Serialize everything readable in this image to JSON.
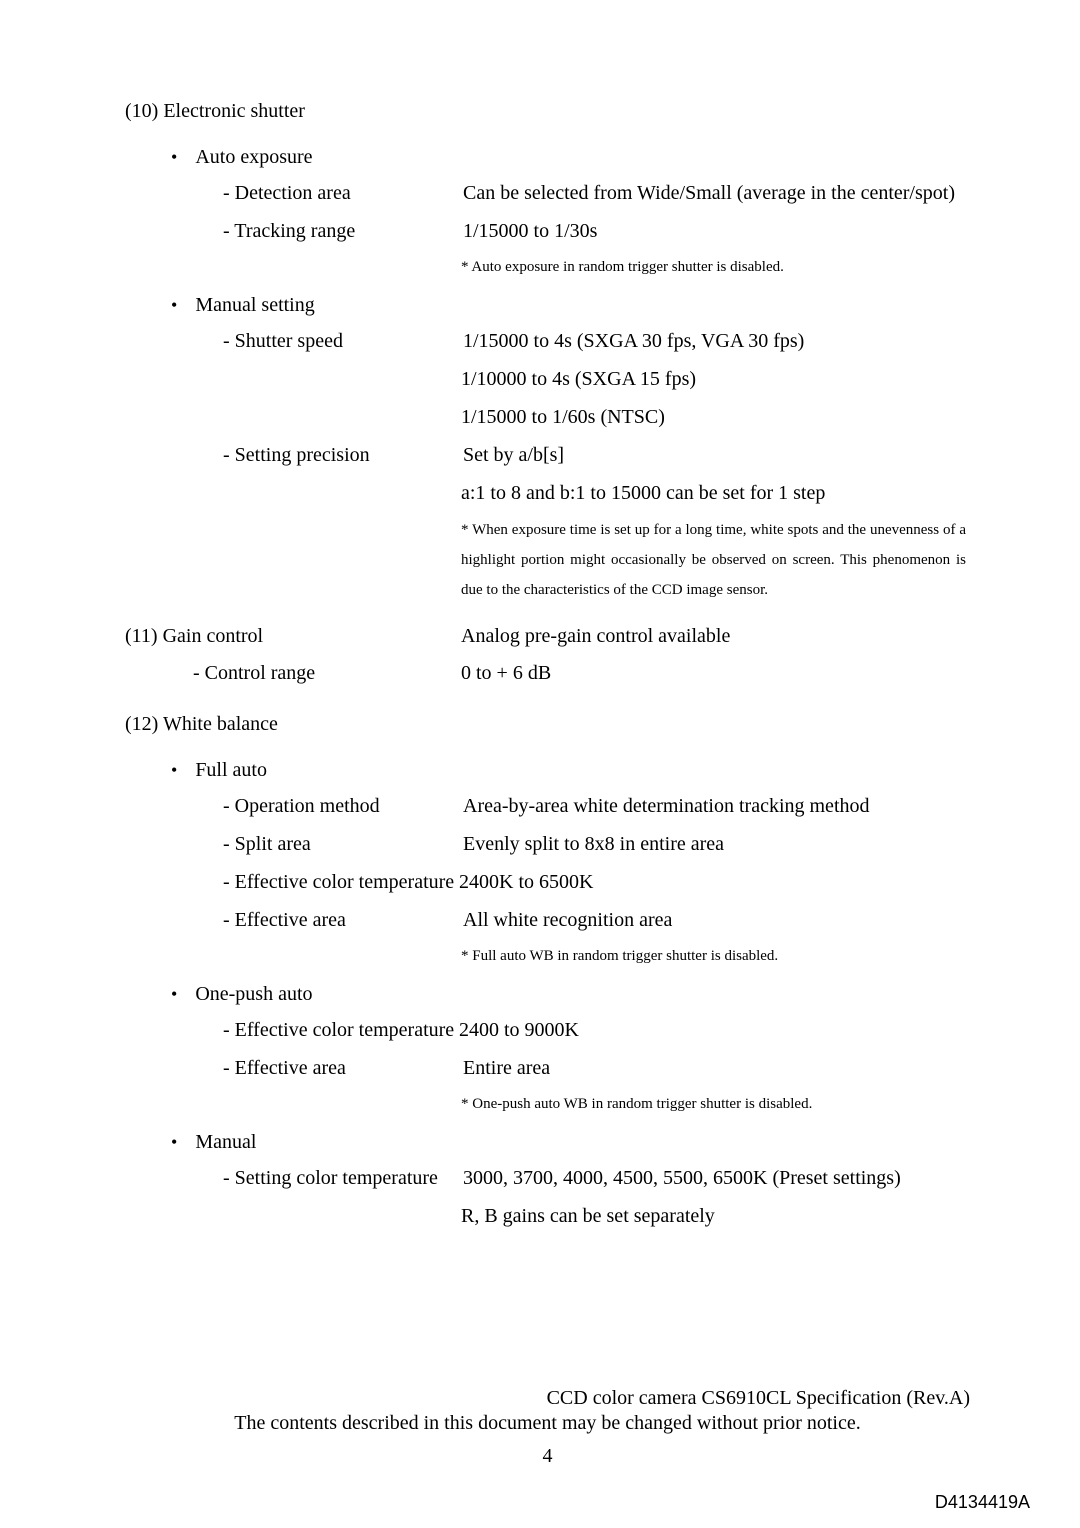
{
  "s10": {
    "heading": "(10) Electronic shutter",
    "b1": {
      "label": "Auto exposure",
      "r1": {
        "label": "- Detection area",
        "value": "Can be selected from Wide/Small (average in the center/spot)"
      },
      "r2": {
        "label": "- Tracking range",
        "value": "1/15000 to 1/30s"
      },
      "note": "* Auto exposure in random trigger shutter is disabled."
    },
    "b2": {
      "label": "Manual setting",
      "r1": {
        "label": "- Shutter speed",
        "value": "1/15000 to 4s (SXGA 30 fps, VGA 30 fps)"
      },
      "r1b": "1/10000 to 4s (SXGA 15 fps)",
      "r1c": "1/15000 to 1/60s (NTSC)",
      "r2": {
        "label": "- Setting precision",
        "value": "Set by a/b[s]"
      },
      "r2b": "a:1 to 8 and b:1 to 15000 can be set for 1 step",
      "note1": "* When exposure time is set up for a long time, white spots and the unevenness of a highlight portion might occasionally be observed on screen. This phenomenon is due to the characteristics of the CCD image sensor."
    }
  },
  "s11": {
    "heading": "(11) Gain control",
    "value": "Analog pre-gain control available",
    "r1": {
      "label": "- Control range",
      "value": "0 to + 6 dB"
    }
  },
  "s12": {
    "heading": "(12) White balance",
    "b1": {
      "label": "Full auto",
      "r1": {
        "label": "- Operation method",
        "value": "Area-by-area white determination tracking method"
      },
      "r2": {
        "label": "- Split area",
        "value": "Evenly split to 8x8 in entire area"
      },
      "r3": {
        "label": "- Effective color temperature",
        "value": "2400K to 6500K"
      },
      "r4": {
        "label": "- Effective area",
        "value": "All white recognition area"
      },
      "note": "* Full auto WB in random trigger shutter is disabled."
    },
    "b2": {
      "label": "One-push auto",
      "r1": {
        "label": "- Effective color temperature",
        "value": "2400 to 9000K"
      },
      "r2": {
        "label": "- Effective area",
        "value": "Entire area"
      },
      "note": "* One-push auto WB in random trigger shutter is disabled."
    },
    "b3": {
      "label": "Manual",
      "r1": {
        "label": "- Setting color temperature",
        "value": "3000, 3700, 4000, 4500, 5500, 6500K (Preset settings)"
      },
      "r1b": "R, B gains can be set separately"
    }
  },
  "footer": {
    "line1": "CCD color camera CS6910CL Specification (Rev.A)",
    "line2": "The contents described in this document may be changed without prior notice.",
    "page": "4",
    "docid": "D4134419A"
  }
}
